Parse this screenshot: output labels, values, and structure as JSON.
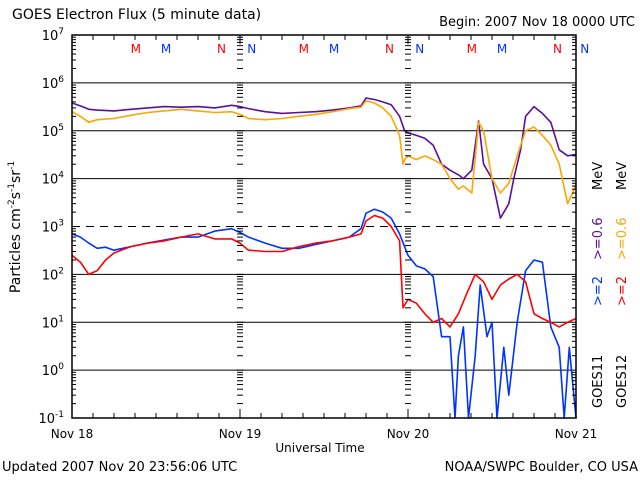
{
  "chart_data": {
    "type": "line",
    "title": "GOES Electron Flux (5 minute data)",
    "subtitle": "Begin: 2007 Nov 18 0000 UTC",
    "xlabel": "Universal Time",
    "ylabel": "Particles cm-2s-1sr-1",
    "yscale": "log",
    "ylim": [
      0.1,
      10000000
    ],
    "xlim_days": [
      0,
      3
    ],
    "x_tick_labels": [
      "Nov 18",
      "Nov 19",
      "Nov 20",
      "Nov 21"
    ],
    "y_tick_labels": [
      {
        "base": "10",
        "exp": "-1",
        "value": 0.1
      },
      {
        "base": "10",
        "exp": "0",
        "value": 1
      },
      {
        "base": "10",
        "exp": "1",
        "value": 10
      },
      {
        "base": "10",
        "exp": "2",
        "value": 100
      },
      {
        "base": "10",
        "exp": "3",
        "value": 1000
      },
      {
        "base": "10",
        "exp": "4",
        "value": 10000
      },
      {
        "base": "10",
        "exp": "5",
        "value": 100000
      },
      {
        "base": "10",
        "exp": "6",
        "value": 1000000
      },
      {
        "base": "10",
        "exp": "7",
        "value": 10000000
      }
    ],
    "grid": "horizontal solid lines at each decade, dashed line at 10^3",
    "threshold_dashed": 1000,
    "legend_placement": "right",
    "legend": [
      {
        "name": "GOES11 >=2 MeV",
        "label": ">=2",
        "color": "#0033ff"
      },
      {
        "name": "GOES12 >=2 MeV",
        "label": ">=2",
        "color": "#ff0000"
      },
      {
        "name": "GOES11 >=0.6 MeV",
        "label": ">=0.6",
        "color": "#5b0fa0"
      },
      {
        "name": "GOES12 >=0.6 MeV",
        "label": ">=0.6",
        "color": "#ffa500"
      }
    ],
    "legend_unit": "MeV",
    "legend_sats": [
      "GOES11",
      "GOES12"
    ],
    "markers": [
      {
        "text": "M",
        "color": "#ff0000",
        "day": 0.38
      },
      {
        "text": "M",
        "color": "#0033ff",
        "day": 0.56
      },
      {
        "text": "N",
        "color": "#ff0000",
        "day": 0.89
      },
      {
        "text": "N",
        "color": "#0033ff",
        "day": 1.07
      },
      {
        "text": "M",
        "color": "#ff0000",
        "day": 1.38
      },
      {
        "text": "M",
        "color": "#0033ff",
        "day": 1.56
      },
      {
        "text": "N",
        "color": "#ff0000",
        "day": 1.89
      },
      {
        "text": "N",
        "color": "#0033ff",
        "day": 2.07
      },
      {
        "text": "M",
        "color": "#ff0000",
        "day": 2.38
      },
      {
        "text": "M",
        "color": "#0033ff",
        "day": 2.56
      },
      {
        "text": "N",
        "color": "#ff0000",
        "day": 2.89
      },
      {
        "text": "N",
        "color": "#0033ff",
        "day": 3.07
      }
    ],
    "series": [
      {
        "name": "GOES11 >=0.6 MeV",
        "color": "#5b0fa0",
        "x": [
          0,
          0.05,
          0.1,
          0.15,
          0.25,
          0.35,
          0.45,
          0.55,
          0.65,
          0.75,
          0.85,
          0.95,
          1.0,
          1.05,
          1.15,
          1.25,
          1.35,
          1.45,
          1.55,
          1.65,
          1.72,
          1.75,
          1.8,
          1.85,
          1.9,
          1.95,
          1.98,
          2.0,
          2.05,
          2.1,
          2.15,
          2.2,
          2.25,
          2.3,
          2.33,
          2.38,
          2.42,
          2.45,
          2.5,
          2.55,
          2.6,
          2.63,
          2.67,
          2.7,
          2.75,
          2.8,
          2.85,
          2.9,
          2.95,
          3.0
        ],
        "y": [
          380000,
          330000,
          280000,
          270000,
          260000,
          280000,
          300000,
          320000,
          310000,
          320000,
          300000,
          340000,
          320000,
          290000,
          250000,
          230000,
          240000,
          250000,
          270000,
          300000,
          330000,
          480000,
          450000,
          400000,
          350000,
          200000,
          100000,
          90000,
          80000,
          70000,
          50000,
          20000,
          15000,
          12000,
          10000,
          15000,
          160000,
          20000,
          10000,
          1500,
          3000,
          10000,
          40000,
          200000,
          320000,
          230000,
          150000,
          40000,
          30000,
          32000
        ]
      },
      {
        "name": "GOES12 >=0.6 MeV",
        "color": "#ffa500",
        "x": [
          0,
          0.05,
          0.1,
          0.15,
          0.25,
          0.35,
          0.45,
          0.55,
          0.65,
          0.75,
          0.85,
          0.95,
          1.0,
          1.05,
          1.15,
          1.25,
          1.35,
          1.45,
          1.55,
          1.65,
          1.72,
          1.75,
          1.8,
          1.85,
          1.9,
          1.95,
          1.97,
          1.98,
          2.0,
          2.05,
          2.1,
          2.15,
          2.2,
          2.25,
          2.3,
          2.33,
          2.38,
          2.42,
          2.45,
          2.5,
          2.55,
          2.6,
          2.65,
          2.7,
          2.75,
          2.8,
          2.85,
          2.9,
          2.95,
          2.98,
          3.0
        ],
        "y": [
          250000,
          200000,
          150000,
          170000,
          180000,
          210000,
          240000,
          260000,
          280000,
          260000,
          240000,
          250000,
          220000,
          180000,
          170000,
          180000,
          200000,
          220000,
          250000,
          290000,
          310000,
          420000,
          380000,
          300000,
          200000,
          80000,
          20000,
          25000,
          30000,
          25000,
          30000,
          25000,
          20000,
          10000,
          6000,
          7000,
          5000,
          150000,
          100000,
          10000,
          5000,
          8000,
          30000,
          100000,
          120000,
          80000,
          50000,
          20000,
          3000,
          5000,
          8000
        ]
      },
      {
        "name": "GOES11 >=2 MeV",
        "color": "#0033ff",
        "x": [
          0,
          0.05,
          0.1,
          0.15,
          0.2,
          0.25,
          0.35,
          0.45,
          0.55,
          0.65,
          0.75,
          0.85,
          0.95,
          1.0,
          1.05,
          1.15,
          1.25,
          1.35,
          1.45,
          1.55,
          1.65,
          1.72,
          1.75,
          1.8,
          1.85,
          1.9,
          1.95,
          2.0,
          2.05,
          2.1,
          2.15,
          2.2,
          2.25,
          2.28,
          2.3,
          2.33,
          2.36,
          2.4,
          2.43,
          2.47,
          2.5,
          2.53,
          2.57,
          2.6,
          2.65,
          2.7,
          2.75,
          2.8,
          2.85,
          2.9,
          2.93,
          2.96,
          3.0
        ],
        "y": [
          700,
          600,
          450,
          350,
          370,
          320,
          380,
          450,
          520,
          600,
          600,
          800,
          900,
          750,
          600,
          450,
          350,
          350,
          420,
          500,
          600,
          900,
          1900,
          2300,
          2000,
          1500,
          700,
          250,
          150,
          130,
          90,
          5,
          5,
          0.1,
          2,
          8,
          0.1,
          2,
          60,
          5,
          10,
          0.1,
          3,
          0.3,
          10,
          120,
          200,
          180,
          8,
          3,
          0.1,
          3,
          0.1
        ]
      },
      {
        "name": "GOES12 >=2 MeV",
        "color": "#ff0000",
        "x": [
          0,
          0.05,
          0.1,
          0.15,
          0.2,
          0.25,
          0.35,
          0.45,
          0.55,
          0.65,
          0.75,
          0.85,
          0.95,
          1.0,
          1.05,
          1.15,
          1.25,
          1.35,
          1.45,
          1.55,
          1.65,
          1.72,
          1.75,
          1.8,
          1.85,
          1.9,
          1.95,
          1.97,
          2.0,
          2.05,
          2.1,
          2.15,
          2.2,
          2.25,
          2.3,
          2.35,
          2.4,
          2.45,
          2.5,
          2.55,
          2.6,
          2.65,
          2.7,
          2.75,
          2.8,
          2.85,
          2.9,
          2.95,
          3.0
        ],
        "y": [
          250,
          180,
          100,
          120,
          200,
          280,
          380,
          450,
          500,
          600,
          700,
          550,
          550,
          450,
          320,
          300,
          300,
          380,
          450,
          500,
          600,
          700,
          1300,
          1700,
          1500,
          1000,
          500,
          20,
          30,
          25,
          15,
          10,
          12,
          8,
          15,
          40,
          100,
          70,
          30,
          60,
          80,
          100,
          70,
          15,
          12,
          10,
          8,
          10,
          12
        ]
      }
    ]
  },
  "header": {
    "title": "GOES Electron Flux (5 minute data)",
    "begin": "Begin: 2007 Nov 18 0000 UTC"
  },
  "footer": {
    "updated": "Updated 2007 Nov 20 23:56:06 UTC",
    "credit": "NOAA/SWPC Boulder, CO USA"
  },
  "axes": {
    "ylabel_main": "Particles cm",
    "ylabel_sup1": "-2",
    "ylabel_s": "s",
    "ylabel_sup2": "-1",
    "ylabel_sr": "sr",
    "ylabel_sup3": "-1",
    "xlabel": "Universal Time"
  },
  "legend_text": {
    "goes11": "GOES11",
    "goes12": "GOES12",
    "ge2_11": ">=2",
    "ge2_12": ">=2",
    "ge06_11": ">=0.6",
    "ge06_12": ">=0.6",
    "mev_11": "MeV",
    "mev_12": "MeV"
  }
}
